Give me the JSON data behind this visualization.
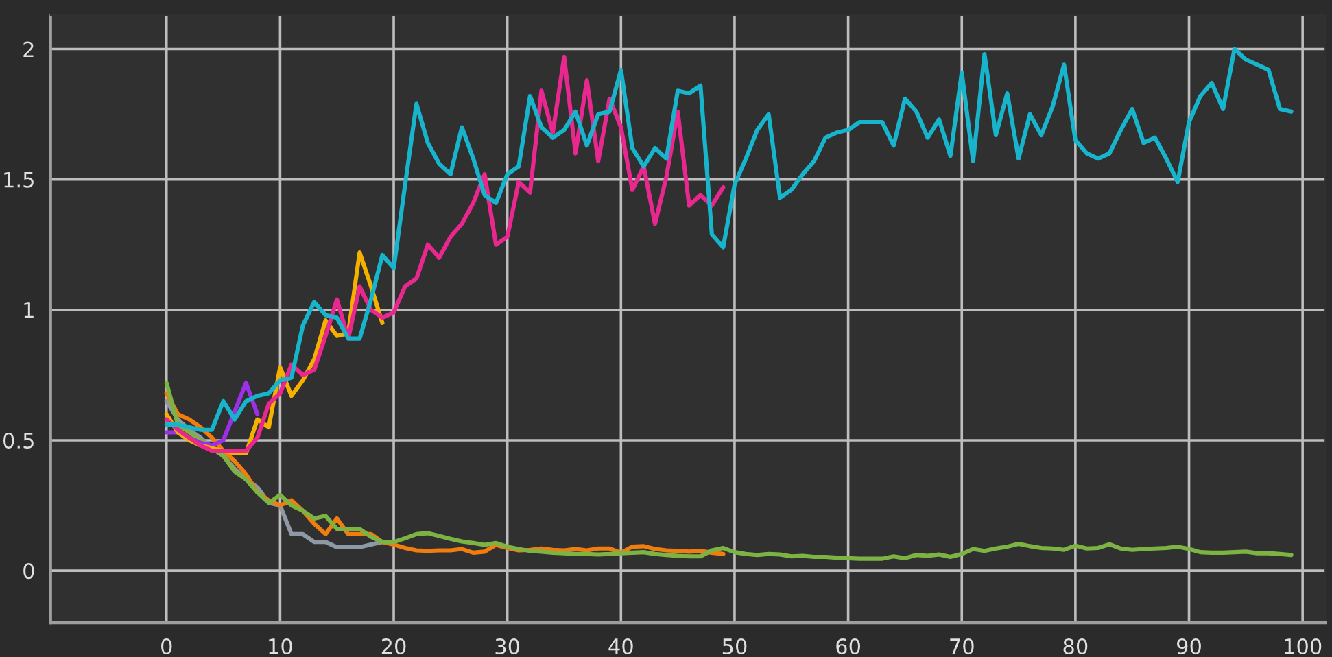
{
  "chart_data": {
    "type": "line",
    "xlim": [
      -10.2,
      102
    ],
    "ylim": [
      -0.2,
      2.13
    ],
    "xticks": [
      0,
      10,
      20,
      30,
      40,
      50,
      60,
      70,
      80,
      90,
      100
    ],
    "yticks": [
      0,
      0.5,
      1,
      1.5,
      2
    ],
    "grid": true,
    "marker": "none",
    "line_style": "solid",
    "series": [
      {
        "color": "#8e99a3",
        "x": [
          0,
          1,
          2,
          3,
          4,
          5,
          6,
          7,
          8,
          9,
          10,
          11,
          12,
          13,
          14,
          15,
          16,
          17,
          18,
          19
        ],
        "values": [
          0.65,
          0.58,
          0.54,
          0.51,
          0.47,
          0.44,
          0.39,
          0.35,
          0.32,
          0.26,
          0.25,
          0.14,
          0.14,
          0.11,
          0.11,
          0.09,
          0.09,
          0.09,
          0.1,
          0.11
        ]
      },
      {
        "color": "#f07d0e",
        "x": [
          0,
          1,
          2,
          3,
          4,
          5,
          6,
          7,
          8,
          9,
          10,
          11,
          12,
          13,
          14,
          15,
          16,
          17,
          18,
          19,
          20,
          21,
          22,
          23,
          24,
          25,
          26,
          27,
          28,
          29,
          30,
          31,
          32,
          33,
          34,
          35,
          36,
          37,
          38,
          39,
          40,
          41,
          42,
          43,
          44,
          45,
          46,
          47,
          48,
          49
        ],
        "values": [
          0.68,
          0.6,
          0.58,
          0.55,
          0.51,
          0.46,
          0.42,
          0.37,
          0.3,
          0.27,
          0.25,
          0.27,
          0.23,
          0.18,
          0.14,
          0.2,
          0.14,
          0.14,
          0.14,
          0.11,
          0.1,
          0.087,
          0.078,
          0.076,
          0.078,
          0.078,
          0.083,
          0.069,
          0.073,
          0.099,
          0.087,
          0.078,
          0.08,
          0.085,
          0.08,
          0.078,
          0.083,
          0.078,
          0.085,
          0.085,
          0.069,
          0.092,
          0.094,
          0.083,
          0.078,
          0.076,
          0.073,
          0.076,
          0.069,
          0.064
        ]
      },
      {
        "color": "#7cb342",
        "x": [
          0,
          1,
          2,
          3,
          4,
          5,
          6,
          7,
          8,
          9,
          10,
          11,
          12,
          13,
          14,
          15,
          16,
          17,
          18,
          19,
          20,
          21,
          22,
          23,
          24,
          25,
          26,
          27,
          28,
          29,
          30,
          31,
          32,
          33,
          34,
          35,
          36,
          37,
          38,
          39,
          40,
          41,
          42,
          43,
          44,
          45,
          46,
          47,
          48,
          49,
          50,
          51,
          52,
          53,
          54,
          55,
          56,
          57,
          58,
          59,
          60,
          61,
          62,
          63,
          64,
          65,
          66,
          67,
          68,
          69,
          70,
          71,
          72,
          73,
          74,
          75,
          76,
          77,
          78,
          79,
          80,
          81,
          82,
          83,
          84,
          85,
          86,
          87,
          88,
          89,
          90,
          91,
          92,
          93,
          94,
          95,
          96,
          97,
          98,
          99
        ],
        "values": [
          0.72,
          0.56,
          0.53,
          0.5,
          0.47,
          0.44,
          0.38,
          0.35,
          0.3,
          0.26,
          0.29,
          0.25,
          0.23,
          0.2,
          0.21,
          0.16,
          0.16,
          0.16,
          0.13,
          0.11,
          0.11,
          0.124,
          0.14,
          0.144,
          0.133,
          0.122,
          0.112,
          0.106,
          0.099,
          0.106,
          0.092,
          0.083,
          0.076,
          0.073,
          0.069,
          0.067,
          0.064,
          0.064,
          0.062,
          0.064,
          0.067,
          0.069,
          0.071,
          0.064,
          0.06,
          0.057,
          0.055,
          0.055,
          0.078,
          0.087,
          0.071,
          0.064,
          0.06,
          0.064,
          0.062,
          0.055,
          0.057,
          0.053,
          0.053,
          0.05,
          0.048,
          0.046,
          0.046,
          0.046,
          0.055,
          0.048,
          0.06,
          0.057,
          0.062,
          0.053,
          0.064,
          0.083,
          0.076,
          0.085,
          0.092,
          0.103,
          0.094,
          0.087,
          0.085,
          0.08,
          0.096,
          0.085,
          0.087,
          0.101,
          0.085,
          0.08,
          0.083,
          0.085,
          0.087,
          0.092,
          0.083,
          0.071,
          0.069,
          0.069,
          0.071,
          0.073,
          0.067,
          0.067,
          0.064,
          0.06
        ]
      },
      {
        "color": "#9b30e6",
        "x": [
          0,
          1,
          2,
          3,
          4,
          5,
          6,
          7,
          8
        ],
        "values": [
          0.53,
          0.53,
          0.51,
          0.49,
          0.48,
          0.5,
          0.61,
          0.72,
          0.6
        ]
      },
      {
        "color": "#f5b000",
        "x": [
          0,
          1,
          2,
          3,
          4,
          5,
          6,
          7,
          8,
          9,
          10,
          11,
          12,
          13,
          14,
          15,
          16,
          17,
          18,
          19
        ],
        "values": [
          0.6,
          0.53,
          0.5,
          0.48,
          0.47,
          0.46,
          0.45,
          0.45,
          0.58,
          0.55,
          0.78,
          0.67,
          0.73,
          0.81,
          0.96,
          0.9,
          0.91,
          1.22,
          1.09,
          0.95
        ]
      },
      {
        "color": "#e8288f",
        "x": [
          0,
          1,
          2,
          3,
          4,
          5,
          6,
          7,
          8,
          9,
          10,
          11,
          12,
          13,
          14,
          15,
          16,
          17,
          18,
          19,
          20,
          21,
          22,
          23,
          24,
          25,
          26,
          27,
          28,
          29,
          30,
          31,
          32,
          33,
          34,
          35,
          36,
          37,
          38,
          39,
          40,
          41,
          42,
          43,
          44,
          45,
          46,
          47,
          48,
          49
        ],
        "values": [
          0.58,
          0.54,
          0.51,
          0.48,
          0.46,
          0.46,
          0.46,
          0.46,
          0.51,
          0.64,
          0.68,
          0.79,
          0.75,
          0.77,
          0.9,
          1.04,
          0.89,
          1.09,
          1.0,
          0.97,
          0.99,
          1.09,
          1.12,
          1.25,
          1.2,
          1.28,
          1.33,
          1.41,
          1.52,
          1.25,
          1.28,
          1.49,
          1.45,
          1.84,
          1.68,
          1.97,
          1.6,
          1.88,
          1.57,
          1.81,
          1.7,
          1.46,
          1.55,
          1.33,
          1.51,
          1.76,
          1.4,
          1.44,
          1.4,
          1.47
        ]
      },
      {
        "color": "#17b4cc",
        "x": [
          0,
          1,
          2,
          3,
          4,
          5,
          6,
          7,
          8,
          9,
          10,
          11,
          12,
          13,
          14,
          15,
          16,
          17,
          18,
          19,
          20,
          21,
          22,
          23,
          24,
          25,
          26,
          27,
          28,
          29,
          30,
          31,
          32,
          33,
          34,
          35,
          36,
          37,
          38,
          39,
          40,
          41,
          42,
          43,
          44,
          45,
          46,
          47,
          48,
          49,
          50,
          51,
          52,
          53,
          54,
          55,
          56,
          57,
          58,
          59,
          60,
          61,
          62,
          63,
          64,
          65,
          66,
          67,
          68,
          69,
          70,
          71,
          72,
          73,
          74,
          75,
          76,
          77,
          78,
          79,
          80,
          81,
          82,
          83,
          84,
          85,
          86,
          87,
          88,
          89,
          90,
          91,
          92,
          93,
          94,
          95,
          96,
          97,
          98,
          99
        ],
        "values": [
          0.56,
          0.56,
          0.55,
          0.54,
          0.54,
          0.65,
          0.58,
          0.65,
          0.67,
          0.68,
          0.73,
          0.74,
          0.94,
          1.03,
          0.98,
          0.97,
          0.89,
          0.89,
          1.04,
          1.21,
          1.16,
          1.48,
          1.79,
          1.64,
          1.56,
          1.52,
          1.7,
          1.58,
          1.44,
          1.41,
          1.52,
          1.55,
          1.82,
          1.7,
          1.66,
          1.69,
          1.76,
          1.63,
          1.75,
          1.76,
          1.92,
          1.62,
          1.55,
          1.62,
          1.58,
          1.84,
          1.83,
          1.86,
          1.29,
          1.24,
          1.48,
          1.58,
          1.69,
          1.75,
          1.43,
          1.46,
          1.52,
          1.57,
          1.66,
          1.68,
          1.69,
          1.72,
          1.72,
          1.72,
          1.63,
          1.81,
          1.76,
          1.66,
          1.73,
          1.59,
          1.91,
          1.57,
          1.98,
          1.67,
          1.83,
          1.58,
          1.75,
          1.67,
          1.78,
          1.94,
          1.65,
          1.6,
          1.58,
          1.6,
          1.69,
          1.77,
          1.64,
          1.66,
          1.58,
          1.49,
          1.72,
          1.82,
          1.87,
          1.77,
          2.0,
          1.96,
          1.94,
          1.92,
          1.77,
          1.76
        ]
      }
    ]
  }
}
